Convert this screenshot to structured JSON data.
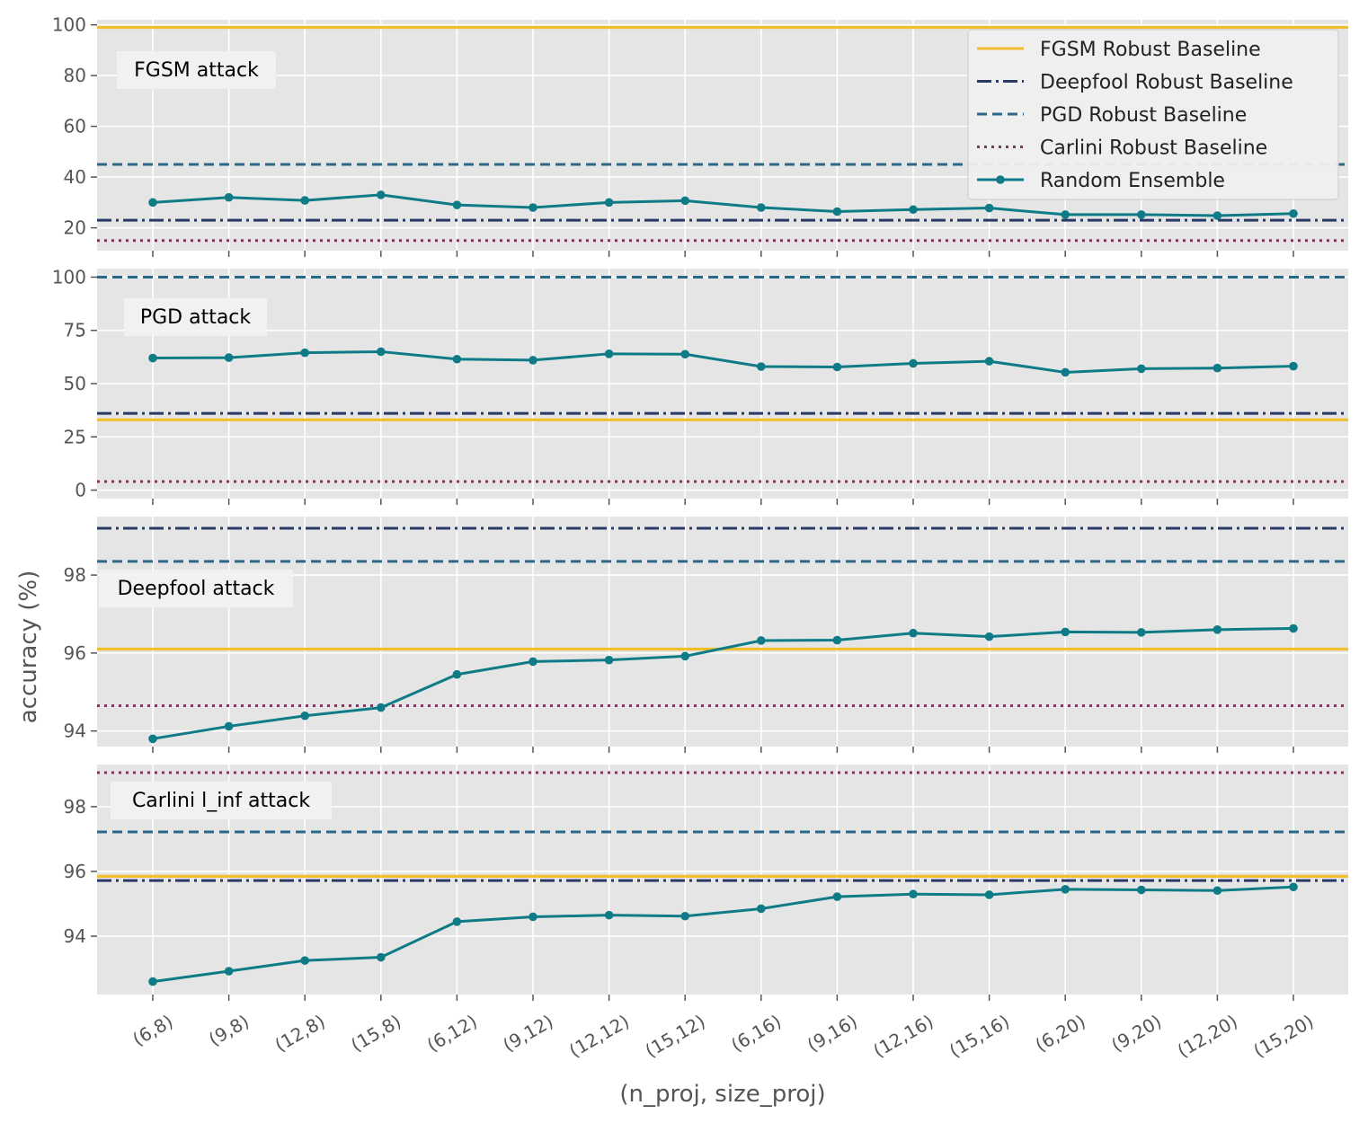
{
  "chart_data": {
    "type": "line",
    "xlabel": "(n_proj, size_proj)",
    "ylabel": "accuracy (%)",
    "categories": [
      "(6,8)",
      "(9,8)",
      "(12,8)",
      "(15,8)",
      "(6,12)",
      "(9,12)",
      "(12,12)",
      "(15,12)",
      "(6,16)",
      "(9,16)",
      "(12,16)",
      "(15,16)",
      "(6,20)",
      "(9,20)",
      "(12,20)",
      "(15,20)"
    ],
    "legend": {
      "placement": "top-right",
      "entries": [
        {
          "name": "FGSM Robust Baseline",
          "color": "#f0be2f",
          "style": "solid"
        },
        {
          "name": "Deepfool Robust Baseline",
          "color": "#2a3a66",
          "style": "dashdot"
        },
        {
          "name": "PGD Robust Baseline",
          "color": "#2d6788",
          "style": "dashed"
        },
        {
          "name": "Carlini Robust Baseline",
          "color": "#7a3a5c",
          "style": "dotted"
        },
        {
          "name": "Random Ensemble",
          "color": "#0f7b86",
          "style": "line-marker"
        }
      ]
    },
    "grid": true,
    "panels": [
      {
        "title": "FGSM attack",
        "ylim": [
          11,
          102
        ],
        "yticks": [
          20,
          40,
          60,
          80,
          100
        ],
        "baselines": {
          "fgsm": 99,
          "deepfool": 23,
          "pgd": 45,
          "carlini": 15
        },
        "series": [
          {
            "name": "Random Ensemble",
            "values": [
              30.0,
              32.0,
              30.8,
              33.0,
              29.0,
              28.0,
              30.0,
              30.7,
              28.0,
              26.4,
              27.2,
              27.8,
              25.2,
              25.2,
              24.8,
              25.6
            ]
          }
        ]
      },
      {
        "title": "PGD attack",
        "ylim": [
          -4,
          104
        ],
        "yticks": [
          0,
          25,
          50,
          75,
          100
        ],
        "baselines": {
          "fgsm": 33,
          "deepfool": 36,
          "pgd": 100,
          "carlini": 4
        },
        "series": [
          {
            "name": "Random Ensemble",
            "values": [
              62.0,
              62.2,
              64.5,
              65.0,
              61.5,
              61.0,
              64.0,
              63.8,
              58.0,
              57.8,
              59.5,
              60.5,
              55.3,
              57.0,
              57.3,
              58.2
            ]
          }
        ]
      },
      {
        "title": "Deepfool attack",
        "ylim": [
          93.6,
          99.5
        ],
        "yticks": [
          94,
          96,
          98
        ],
        "baselines": {
          "fgsm": 96.1,
          "deepfool": 99.2,
          "pgd": 98.35,
          "carlini": 94.65
        },
        "series": [
          {
            "name": "Random Ensemble",
            "values": [
              93.8,
              94.12,
              94.39,
              94.6,
              95.45,
              95.78,
              95.82,
              95.92,
              96.32,
              96.33,
              96.51,
              96.42,
              96.54,
              96.53,
              96.6,
              96.63
            ]
          }
        ]
      },
      {
        "title": "Carlini l_inf attack",
        "ylim": [
          92.2,
          99.3
        ],
        "yticks": [
          94,
          96,
          98
        ],
        "baselines": {
          "fgsm": 95.85,
          "deepfool": 95.72,
          "pgd": 97.22,
          "carlini": 99.05
        },
        "series": [
          {
            "name": "Random Ensemble",
            "values": [
              92.6,
              92.92,
              93.25,
              93.35,
              94.45,
              94.6,
              94.65,
              94.62,
              94.85,
              95.22,
              95.3,
              95.28,
              95.45,
              95.43,
              95.41,
              95.52
            ]
          }
        ]
      }
    ]
  }
}
